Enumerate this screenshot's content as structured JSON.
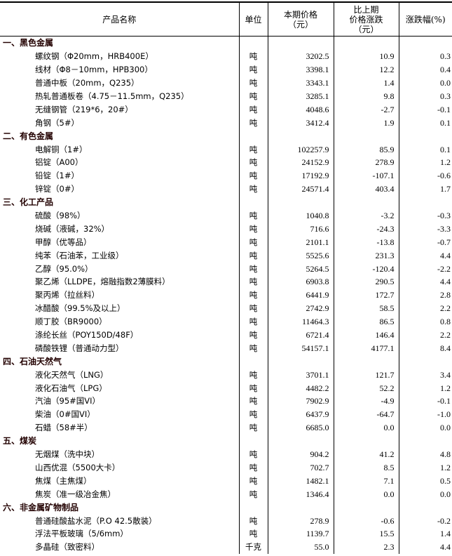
{
  "headers": {
    "name": "产品名称",
    "unit": "单位",
    "price": [
      "本期价格",
      "（元）"
    ],
    "change": [
      "比上期",
      "价格涨跌",
      "（元）"
    ],
    "pct": "涨跌幅(%)"
  },
  "sections": [
    {
      "title": "一、黑色金属",
      "items": [
        [
          "螺纹钢（Φ20mm，HRB400E）",
          "吨",
          "3202.5",
          "10.9",
          "0.3"
        ],
        [
          "线材（Φ8－10mm，HPB300）",
          "吨",
          "3398.1",
          "12.2",
          "0.4"
        ],
        [
          "普通中板（20mm，Q235）",
          "吨",
          "3343.1",
          "1.4",
          "0.0"
        ],
        [
          "热轧普通板卷（4.75－11.5mm，Q235）",
          "吨",
          "3285.1",
          "9.8",
          "0.3"
        ],
        [
          "无缝钢管（219*6，20#）",
          "吨",
          "4048.6",
          "-2.7",
          "-0.1"
        ],
        [
          "角钢（5#）",
          "吨",
          "3412.4",
          "1.9",
          "0.1"
        ]
      ]
    },
    {
      "title": "二、有色金属",
      "items": [
        [
          "电解铜（1#）",
          "吨",
          "102257.9",
          "85.9",
          "0.1"
        ],
        [
          "铝锭（A00）",
          "吨",
          "24152.9",
          "278.9",
          "1.2"
        ],
        [
          "铅锭（1#）",
          "吨",
          "17192.9",
          "-107.1",
          "-0.6"
        ],
        [
          "锌锭（0#）",
          "吨",
          "24571.4",
          "403.4",
          "1.7"
        ]
      ]
    },
    {
      "title": "三、化工产品",
      "items": [
        [
          "硫酸（98%）",
          "吨",
          "1040.8",
          "-3.2",
          "-0.3"
        ],
        [
          "烧碱（液碱，32%）",
          "吨",
          "716.6",
          "-24.3",
          "-3.3"
        ],
        [
          "甲醇（优等品）",
          "吨",
          "2101.1",
          "-13.8",
          "-0.7"
        ],
        [
          "纯苯（石油苯，工业级）",
          "吨",
          "5525.6",
          "231.3",
          "4.4"
        ],
        [
          "乙醇（95.0%）",
          "吨",
          "5264.5",
          "-120.4",
          "-2.2"
        ],
        [
          "聚乙烯（LLDPE，熔融指数2薄膜料）",
          "吨",
          "6903.8",
          "290.5",
          "4.4"
        ],
        [
          "聚丙烯（拉丝料）",
          "吨",
          "6441.9",
          "172.7",
          "2.8"
        ],
        [
          "冰醋酸（99.5%及以上）",
          "吨",
          "2742.9",
          "58.5",
          "2.2"
        ],
        [
          "顺丁胶（BR9000）",
          "吨",
          "11464.3",
          "86.5",
          "0.8"
        ],
        [
          "涤纶长丝（POY150D/48F）",
          "吨",
          "6721.4",
          "146.4",
          "2.2"
        ],
        [
          "磷酸铁锂（普通动力型）",
          "吨",
          "54157.1",
          "4177.1",
          "8.4"
        ]
      ]
    },
    {
      "title": "四、石油天然气",
      "items": [
        [
          "液化天然气（LNG）",
          "吨",
          "3701.1",
          "121.7",
          "3.4"
        ],
        [
          "液化石油气（LPG）",
          "吨",
          "4482.2",
          "52.2",
          "1.2"
        ],
        [
          "汽油（95#国VI）",
          "吨",
          "7902.9",
          "-4.9",
          "-0.1"
        ],
        [
          "柴油（0#国VI）",
          "吨",
          "6437.9",
          "-64.7",
          "-1.0"
        ],
        [
          "石蜡（58#半）",
          "吨",
          "6685.0",
          "0.0",
          "0.0"
        ]
      ]
    },
    {
      "title": "五、煤炭",
      "items": [
        [
          "无烟煤（洗中块）",
          "吨",
          "904.2",
          "41.2",
          "4.8"
        ],
        [
          "山西优混（5500大卡）",
          "吨",
          "702.7",
          "8.5",
          "1.2"
        ],
        [
          "焦煤（主焦煤）",
          "吨",
          "1482.1",
          "7.1",
          "0.5"
        ],
        [
          "焦炭（准一级冶金焦）",
          "吨",
          "1346.4",
          "0.0",
          "0.0"
        ]
      ]
    },
    {
      "title": "六、非金属矿物制品",
      "items": [
        [
          "普通硅酸盐水泥（P.O 42.5散装）",
          "吨",
          "278.9",
          "-0.6",
          "-0.2"
        ],
        [
          "浮法平板玻璃（5/6mm）",
          "吨",
          "1139.7",
          "15.5",
          "1.4"
        ],
        [
          "多晶硅（致密料）",
          "千克",
          "55.0",
          "2.3",
          "4.4"
        ]
      ]
    }
  ]
}
